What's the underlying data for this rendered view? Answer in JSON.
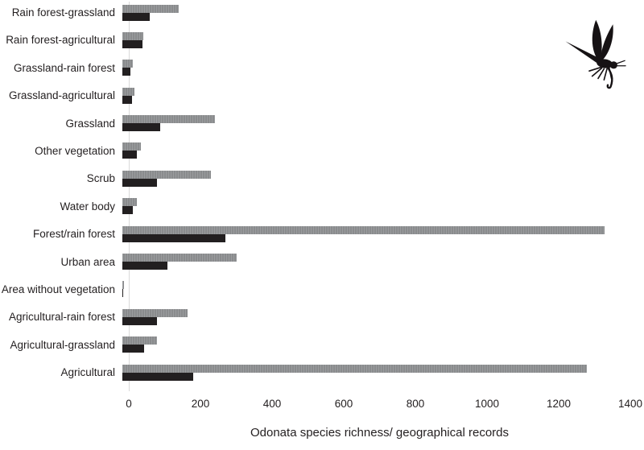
{
  "figure": {
    "icon": "dragonfly-silhouette"
  },
  "chart_data": {
    "type": "bar",
    "orientation": "horizontal",
    "title": "",
    "xlabel": "Odonata species richness/ geographical records",
    "ylabel": "",
    "xlim": [
      0,
      1400
    ],
    "x_ticks": [
      0,
      200,
      400,
      600,
      800,
      1000,
      1200,
      1400
    ],
    "grid": false,
    "legend_position": "none",
    "categories": [
      "Rain forest-grassland",
      "Rain forest-agricultural",
      "Grassland-rain forest",
      "Grassland-agricultural",
      "Grassland",
      "Other vegetation",
      "Scrub",
      "Water body",
      "Forest/rain forest",
      "Urban area",
      "Area without vegetation",
      "Agricultural-rain forest",
      "Agricultural-grassland",
      "Agricultural"
    ],
    "series": [
      {
        "name": "Geographical records",
        "color": "#8f9193",
        "values": [
          155,
          58,
          28,
          34,
          255,
          50,
          245,
          40,
          1330,
          315,
          4,
          180,
          95,
          1280
        ]
      },
      {
        "name": "Species richness",
        "color": "#221f20",
        "values": [
          75,
          55,
          23,
          27,
          105,
          40,
          95,
          28,
          285,
          125,
          2,
          95,
          60,
          195
        ]
      }
    ]
  }
}
